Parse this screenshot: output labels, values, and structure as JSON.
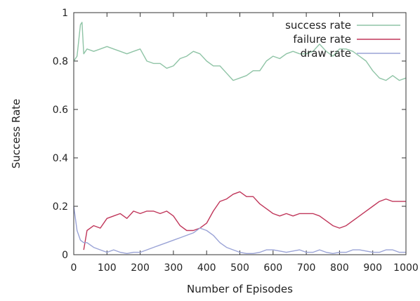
{
  "chart_data": {
    "type": "line",
    "xlabel": "Number of Episodes",
    "ylabel": "Success Rate",
    "xlim": [
      0,
      1000
    ],
    "ylim": [
      0,
      1
    ],
    "x_ticks": [
      "0",
      "100",
      "200",
      "300",
      "400",
      "500",
      "600",
      "700",
      "800",
      "900",
      "1000"
    ],
    "y_ticks": [
      "0",
      "0.2",
      "0.4",
      "0.6",
      "0.8",
      "1"
    ],
    "legend_position": "top-right",
    "grid": false,
    "series": [
      {
        "name": "success rate",
        "color": "#8fc4a6",
        "x": [
          0,
          10,
          20,
          25,
          30,
          40,
          60,
          80,
          100,
          120,
          140,
          160,
          180,
          200,
          220,
          240,
          260,
          280,
          300,
          320,
          340,
          360,
          380,
          400,
          420,
          440,
          460,
          480,
          500,
          520,
          540,
          560,
          580,
          600,
          620,
          640,
          660,
          680,
          700,
          720,
          740,
          760,
          780,
          800,
          820,
          840,
          860,
          880,
          900,
          920,
          940,
          960,
          980,
          1000
        ],
        "y": [
          0.8,
          0.82,
          0.95,
          0.96,
          0.83,
          0.85,
          0.84,
          0.85,
          0.86,
          0.85,
          0.84,
          0.83,
          0.84,
          0.85,
          0.8,
          0.79,
          0.79,
          0.77,
          0.78,
          0.81,
          0.82,
          0.84,
          0.83,
          0.8,
          0.78,
          0.78,
          0.75,
          0.72,
          0.73,
          0.74,
          0.76,
          0.76,
          0.8,
          0.82,
          0.81,
          0.83,
          0.84,
          0.83,
          0.83,
          0.84,
          0.87,
          0.84,
          0.82,
          0.85,
          0.85,
          0.84,
          0.82,
          0.8,
          0.76,
          0.73,
          0.72,
          0.74,
          0.72,
          0.73
        ]
      },
      {
        "name": "failure rate",
        "color": "#c0365a",
        "x": [
          30,
          40,
          60,
          80,
          100,
          120,
          140,
          160,
          180,
          200,
          220,
          240,
          260,
          280,
          300,
          320,
          340,
          360,
          380,
          400,
          420,
          440,
          460,
          480,
          500,
          520,
          540,
          560,
          580,
          600,
          620,
          640,
          660,
          680,
          700,
          720,
          740,
          760,
          780,
          800,
          820,
          840,
          860,
          880,
          900,
          920,
          940,
          960,
          980,
          1000
        ],
        "y": [
          0.02,
          0.1,
          0.12,
          0.11,
          0.15,
          0.16,
          0.17,
          0.15,
          0.18,
          0.17,
          0.18,
          0.18,
          0.17,
          0.18,
          0.16,
          0.12,
          0.1,
          0.1,
          0.11,
          0.13,
          0.18,
          0.22,
          0.23,
          0.25,
          0.26,
          0.24,
          0.24,
          0.21,
          0.19,
          0.17,
          0.16,
          0.17,
          0.16,
          0.17,
          0.17,
          0.17,
          0.16,
          0.14,
          0.12,
          0.11,
          0.12,
          0.14,
          0.16,
          0.18,
          0.2,
          0.22,
          0.23,
          0.22,
          0.22,
          0.22
        ]
      },
      {
        "name": "draw rate",
        "color": "#9aa3d6",
        "x": [
          0,
          10,
          20,
          30,
          40,
          60,
          80,
          100,
          120,
          140,
          160,
          180,
          200,
          220,
          240,
          260,
          280,
          300,
          320,
          340,
          360,
          380,
          400,
          420,
          440,
          460,
          480,
          500,
          520,
          540,
          560,
          580,
          600,
          620,
          640,
          660,
          680,
          700,
          720,
          740,
          760,
          780,
          800,
          820,
          840,
          860,
          880,
          900,
          920,
          940,
          960,
          980,
          1000
        ],
        "y": [
          0.2,
          0.1,
          0.06,
          0.05,
          0.05,
          0.03,
          0.02,
          0.01,
          0.02,
          0.01,
          0.005,
          0.01,
          0.01,
          0.02,
          0.03,
          0.04,
          0.05,
          0.06,
          0.07,
          0.08,
          0.09,
          0.11,
          0.1,
          0.08,
          0.05,
          0.03,
          0.02,
          0.01,
          0.005,
          0.005,
          0.01,
          0.02,
          0.02,
          0.015,
          0.01,
          0.015,
          0.02,
          0.01,
          0.01,
          0.02,
          0.01,
          0.005,
          0.01,
          0.01,
          0.02,
          0.02,
          0.015,
          0.01,
          0.01,
          0.02,
          0.02,
          0.01,
          0.01
        ]
      }
    ]
  }
}
